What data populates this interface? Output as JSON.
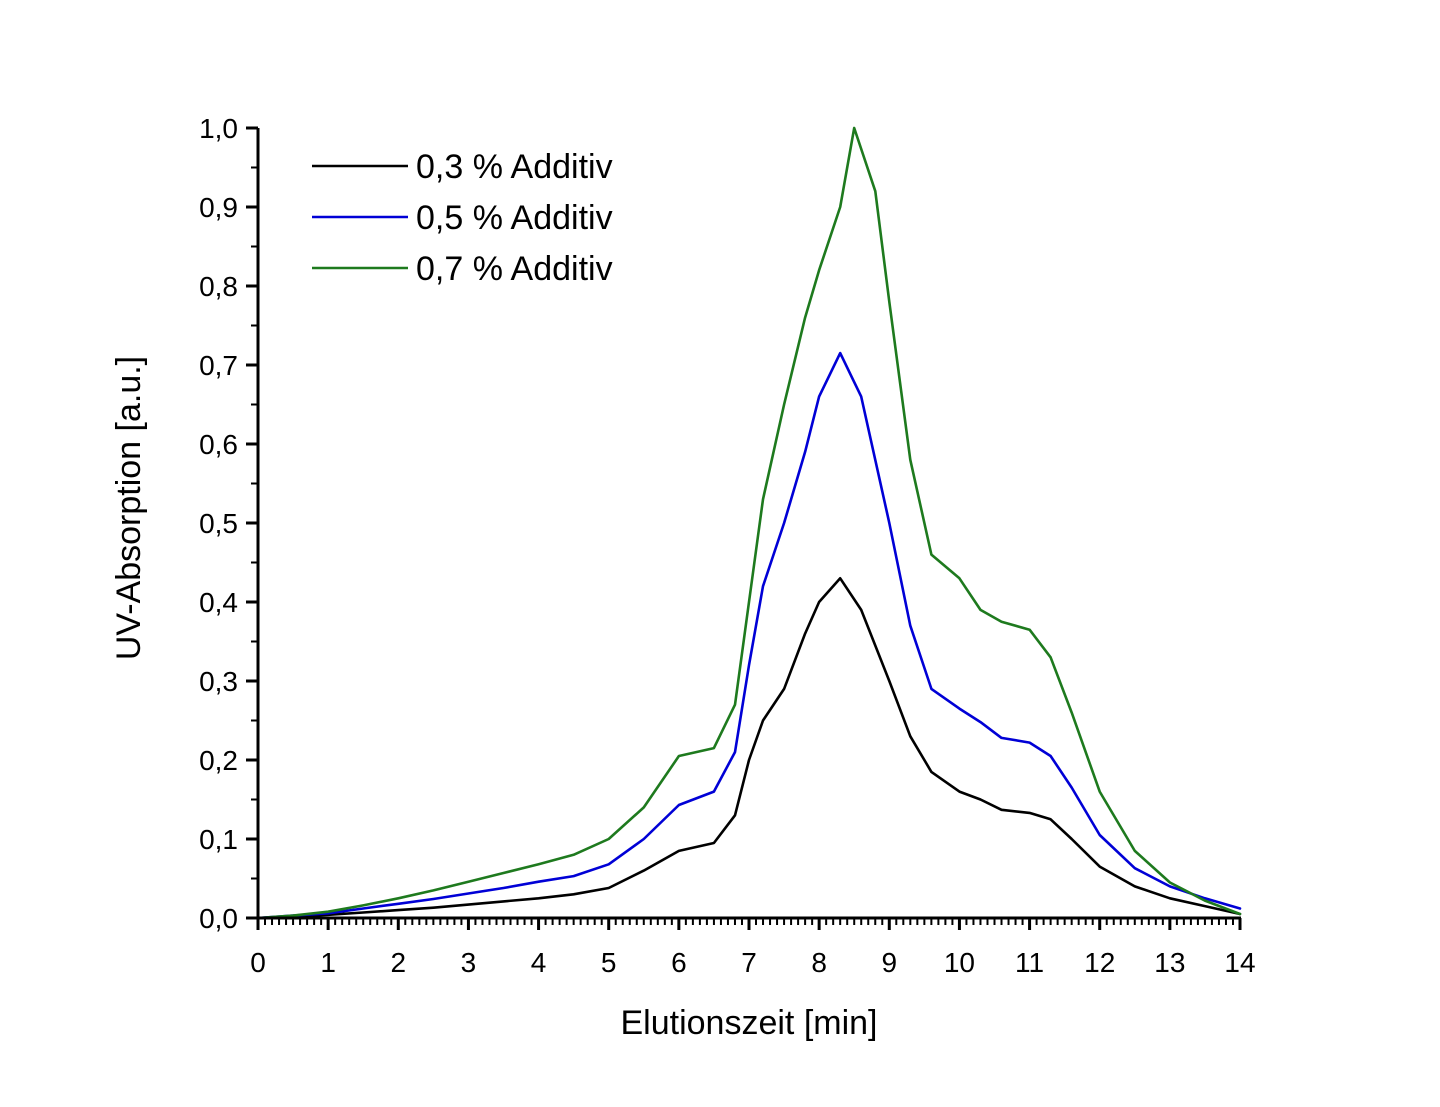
{
  "chart_data": {
    "type": "line",
    "title": "",
    "xlabel": "Elutionszeit [min]",
    "ylabel": "UV-Absorption [a.u.]",
    "xlim": [
      0,
      14
    ],
    "ylim": [
      0,
      1.0
    ],
    "x_ticks": [
      "0",
      "1",
      "2",
      "3",
      "4",
      "5",
      "6",
      "7",
      "8",
      "9",
      "10",
      "11",
      "12",
      "13",
      "14"
    ],
    "y_ticks": [
      "0,0",
      "0,1",
      "0,2",
      "0,3",
      "0,4",
      "0,5",
      "0,6",
      "0,7",
      "0,8",
      "0,9",
      "1,0"
    ],
    "grid": false,
    "legend_position": "top-left",
    "series": [
      {
        "name": "0,3 % Additiv",
        "color": "#000000",
        "x": [
          0,
          0.5,
          1,
          1.5,
          2,
          2.5,
          3,
          3.5,
          4,
          4.5,
          5,
          5.5,
          6,
          6.5,
          6.8,
          7,
          7.2,
          7.5,
          7.8,
          8,
          8.3,
          8.6,
          9,
          9.3,
          9.6,
          10,
          10.3,
          10.6,
          11,
          11.3,
          11.6,
          12,
          12.5,
          13,
          13.5,
          14
        ],
        "y": [
          0,
          0.002,
          0.004,
          0.007,
          0.01,
          0.013,
          0.017,
          0.021,
          0.025,
          0.03,
          0.038,
          0.06,
          0.085,
          0.095,
          0.13,
          0.2,
          0.25,
          0.29,
          0.36,
          0.4,
          0.43,
          0.39,
          0.3,
          0.23,
          0.185,
          0.16,
          0.15,
          0.137,
          0.133,
          0.125,
          0.1,
          0.065,
          0.04,
          0.025,
          0.015,
          0.005
        ]
      },
      {
        "name": "0,5 % Additiv",
        "color": "#0000d6",
        "x": [
          0,
          0.5,
          1,
          1.5,
          2,
          2.5,
          3,
          3.5,
          4,
          4.5,
          5,
          5.5,
          6,
          6.5,
          6.8,
          7,
          7.2,
          7.5,
          7.8,
          8,
          8.3,
          8.6,
          9,
          9.3,
          9.6,
          10,
          10.3,
          10.6,
          11,
          11.3,
          11.6,
          12,
          12.5,
          13,
          13.5,
          14
        ],
        "y": [
          0,
          0.003,
          0.006,
          0.012,
          0.018,
          0.024,
          0.031,
          0.038,
          0.046,
          0.053,
          0.068,
          0.1,
          0.143,
          0.16,
          0.21,
          0.32,
          0.42,
          0.5,
          0.59,
          0.66,
          0.715,
          0.66,
          0.5,
          0.37,
          0.29,
          0.265,
          0.248,
          0.228,
          0.222,
          0.205,
          0.165,
          0.105,
          0.063,
          0.04,
          0.025,
          0.012
        ]
      },
      {
        "name": "0,7 % Additiv",
        "color": "#1e7a1e",
        "x": [
          0,
          0.5,
          1,
          1.5,
          2,
          2.5,
          3,
          3.5,
          4,
          4.5,
          5,
          5.5,
          6,
          6.5,
          6.8,
          7,
          7.2,
          7.5,
          7.8,
          8,
          8.3,
          8.5,
          8.8,
          9,
          9.3,
          9.6,
          10,
          10.3,
          10.6,
          11,
          11.3,
          11.6,
          12,
          12.5,
          13,
          13.5,
          14
        ],
        "y": [
          0,
          0.003,
          0.008,
          0.016,
          0.025,
          0.035,
          0.046,
          0.057,
          0.068,
          0.08,
          0.1,
          0.14,
          0.205,
          0.215,
          0.27,
          0.4,
          0.53,
          0.65,
          0.76,
          0.82,
          0.9,
          1.0,
          0.92,
          0.78,
          0.58,
          0.46,
          0.43,
          0.39,
          0.375,
          0.365,
          0.33,
          0.26,
          0.16,
          0.085,
          0.045,
          0.022,
          0.005
        ]
      }
    ]
  }
}
